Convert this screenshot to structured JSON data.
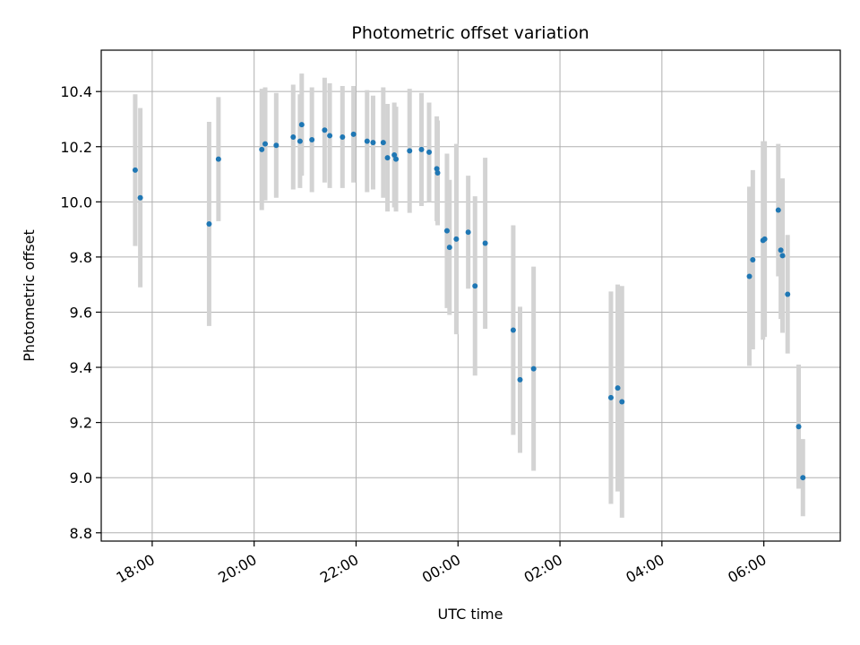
{
  "chart_data": {
    "type": "scatter",
    "title": "Photometric offset variation",
    "xlabel": "UTC time",
    "ylabel": "Photometric offset",
    "x_axis_type": "time",
    "x_range": [
      "17:00",
      "07:30"
    ],
    "x_ticks": [
      "18:00",
      "20:00",
      "22:00",
      "00:00",
      "02:00",
      "04:00",
      "06:00"
    ],
    "ylim": [
      8.77,
      10.55
    ],
    "y_ticks": [
      "8.8",
      "9.0",
      "9.2",
      "9.4",
      "9.6",
      "9.8",
      "10.0",
      "10.2",
      "10.4"
    ],
    "grid": true,
    "marker_color": "#1f77b4",
    "errorbar_color": "#d3d3d3",
    "series": [
      {
        "x": [
          "17:40",
          "17:46",
          "19:07",
          "19:18",
          "20:09",
          "20:13",
          "20:26",
          "20:46",
          "20:54",
          "20:56",
          "21:08",
          "21:23",
          "21:29",
          "21:44",
          "21:57",
          "22:13",
          "22:20",
          "22:32",
          "22:37",
          "22:45",
          "22:47",
          "23:03",
          "23:17",
          "23:26",
          "23:35",
          "23:36",
          "23:47",
          "23:50",
          "23:58",
          "24:12",
          "24:20",
          "24:32",
          "25:05",
          "25:13",
          "25:29",
          "27:00",
          "27:08",
          "27:13",
          "29:43",
          "29:47",
          "29:59",
          "30:01",
          "30:17",
          "30:20",
          "30:22",
          "30:28",
          "30:41",
          "30:46"
        ],
        "y": [
          10.115,
          10.015,
          9.92,
          10.155,
          10.19,
          10.21,
          10.205,
          10.235,
          10.22,
          10.28,
          10.225,
          10.26,
          10.24,
          10.235,
          10.245,
          10.22,
          10.215,
          10.215,
          10.16,
          10.17,
          10.155,
          10.185,
          10.19,
          10.18,
          10.12,
          10.105,
          9.895,
          9.835,
          9.865,
          9.89,
          9.695,
          9.85,
          9.535,
          9.355,
          9.395,
          9.29,
          9.325,
          9.275,
          9.73,
          9.79,
          9.86,
          9.865,
          9.97,
          9.825,
          9.805,
          9.665,
          9.185,
          9.0
        ],
        "err": [
          0.275,
          0.325,
          0.37,
          0.225,
          0.22,
          0.205,
          0.19,
          0.19,
          0.17,
          0.185,
          0.19,
          0.19,
          0.19,
          0.185,
          0.175,
          0.185,
          0.17,
          0.2,
          0.195,
          0.19,
          0.19,
          0.225,
          0.205,
          0.18,
          0.19,
          0.19,
          0.28,
          0.245,
          0.345,
          0.205,
          0.325,
          0.31,
          0.38,
          0.265,
          0.37,
          0.385,
          0.375,
          0.42,
          0.325,
          0.325,
          0.36,
          0.355,
          0.24,
          0.25,
          0.28,
          0.215,
          0.225,
          0.14
        ]
      }
    ]
  }
}
